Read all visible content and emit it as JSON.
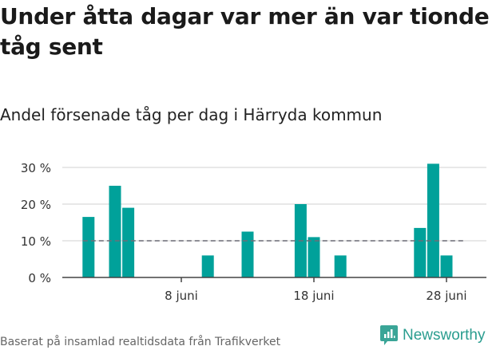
{
  "header": {
    "title": "Under åtta dagar var mer än var tionde tåg sent",
    "subtitle": "Andel försenade tåg per dag i Härryda kommun"
  },
  "footer": {
    "source": "Baserat på insamlad realtidsdata från Trafikverket",
    "brand": "Newsworthy"
  },
  "colors": {
    "bar": "#00a19a",
    "grid": "#e0e0e0",
    "axis": "#444444",
    "reference": "#6e6e78",
    "brand": "#2a9d8f"
  },
  "chart_data": {
    "type": "bar",
    "title": "Andel försenade tåg per dag i Härryda kommun",
    "xlabel": "",
    "ylabel": "",
    "x_range_days": [
      1,
      30
    ],
    "x_ticks": [
      {
        "day": 8,
        "label": "8 juni"
      },
      {
        "day": 18,
        "label": "18 juni"
      },
      {
        "day": 28,
        "label": "28 juni"
      }
    ],
    "y_ticks": [
      {
        "value": 0,
        "label": "0 %"
      },
      {
        "value": 10,
        "label": "10 %"
      },
      {
        "value": 20,
        "label": "20 %"
      },
      {
        "value": 30,
        "label": "30 %"
      }
    ],
    "ylim": [
      0,
      30
    ],
    "grid": true,
    "reference_line": {
      "value": 10,
      "style": "dashed"
    },
    "days": [
      1,
      3,
      4,
      10,
      13,
      17,
      18,
      20,
      26,
      27,
      28
    ],
    "values": [
      16.5,
      25,
      19,
      6,
      12.5,
      20,
      11,
      6,
      13.5,
      31,
      6
    ]
  }
}
